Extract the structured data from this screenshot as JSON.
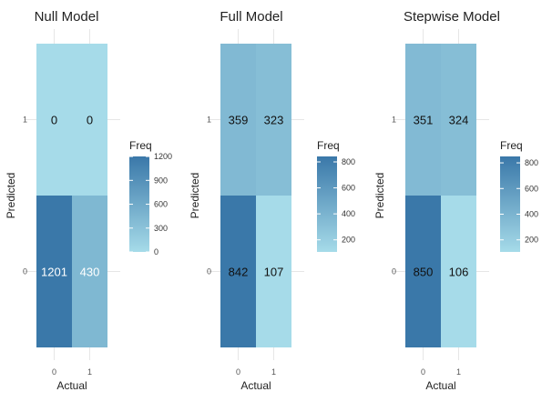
{
  "chart_data": [
    {
      "type": "heatmap",
      "title": "Null Model",
      "xlabel": "Actual",
      "ylabel": "Predicted",
      "x_categories": [
        "0",
        "1"
      ],
      "y_categories": [
        "0",
        "1"
      ],
      "cells": [
        {
          "actual": "0",
          "predicted": "1",
          "freq": 0
        },
        {
          "actual": "1",
          "predicted": "1",
          "freq": 0
        },
        {
          "actual": "0",
          "predicted": "0",
          "freq": 1201
        },
        {
          "actual": "1",
          "predicted": "0",
          "freq": 430
        }
      ],
      "legend": {
        "title": "Freq",
        "min": 0,
        "max": 1201,
        "ticks": [
          0,
          300,
          600,
          900,
          1200
        ]
      }
    },
    {
      "type": "heatmap",
      "title": "Full Model",
      "xlabel": "Actual",
      "ylabel": "Predicted",
      "x_categories": [
        "0",
        "1"
      ],
      "y_categories": [
        "0",
        "1"
      ],
      "cells": [
        {
          "actual": "0",
          "predicted": "1",
          "freq": 359
        },
        {
          "actual": "1",
          "predicted": "1",
          "freq": 323
        },
        {
          "actual": "0",
          "predicted": "0",
          "freq": 842
        },
        {
          "actual": "1",
          "predicted": "0",
          "freq": 107
        }
      ],
      "legend": {
        "title": "Freq",
        "min": 107,
        "max": 842,
        "ticks": [
          200,
          400,
          600,
          800
        ]
      }
    },
    {
      "type": "heatmap",
      "title": "Stepwise Model",
      "xlabel": "Actual",
      "ylabel": "Predicted",
      "x_categories": [
        "0",
        "1"
      ],
      "y_categories": [
        "0",
        "1"
      ],
      "cells": [
        {
          "actual": "0",
          "predicted": "1",
          "freq": 351
        },
        {
          "actual": "1",
          "predicted": "1",
          "freq": 324
        },
        {
          "actual": "0",
          "predicted": "0",
          "freq": 850
        },
        {
          "actual": "1",
          "predicted": "0",
          "freq": 106
        }
      ],
      "legend": {
        "title": "Freq",
        "min": 106,
        "max": 850,
        "ticks": [
          200,
          400,
          600,
          800
        ]
      }
    }
  ],
  "colors": {
    "low": "#a6dbe9",
    "high": "#3a78a9",
    "grid": "#e6e6e6",
    "cell_text_dark": "#111111",
    "cell_text_light": "#ffffff"
  }
}
